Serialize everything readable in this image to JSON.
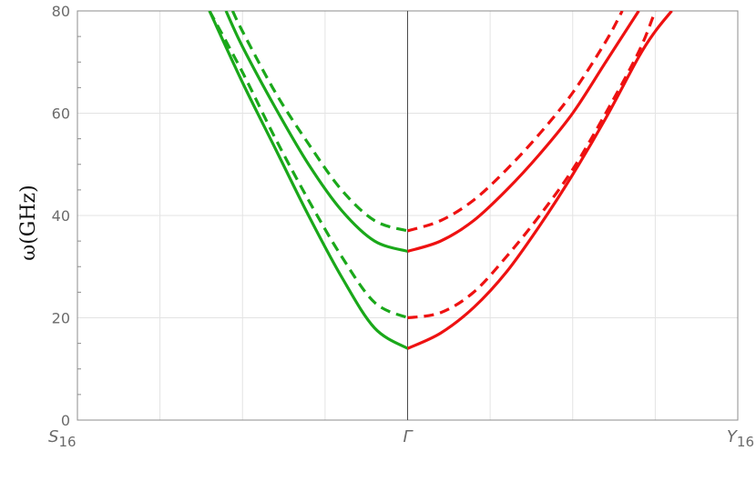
{
  "chart_data": {
    "type": "line",
    "title": "",
    "xlabel": "",
    "ylabel": "ω(GHz)",
    "ylim": [
      0,
      80
    ],
    "xlim": [
      -1,
      1
    ],
    "grid": true,
    "x_ticks": [
      {
        "value": -1,
        "main": "S",
        "sub": "16"
      },
      {
        "value": 0,
        "main": "Γ",
        "sub": ""
      },
      {
        "value": 1,
        "main": "Y",
        "sub": "16"
      }
    ],
    "y_ticks": [
      0,
      20,
      40,
      60,
      80
    ],
    "colors": {
      "left_branch": "#1aa81a",
      "right_branch": "#ee1111"
    },
    "series": [
      {
        "style": "solid",
        "color": "#1aa81a",
        "x": [
          -0.6,
          -0.5,
          -0.4,
          -0.3,
          -0.2,
          -0.1,
          0
        ],
        "y": [
          80,
          66,
          53,
          40,
          28,
          18,
          14
        ]
      },
      {
        "style": "dashed",
        "color": "#1aa81a",
        "x": [
          -0.6,
          -0.5,
          -0.4,
          -0.3,
          -0.2,
          -0.1,
          0
        ],
        "y": [
          80,
          68,
          55,
          43,
          32,
          23,
          20
        ]
      },
      {
        "style": "solid",
        "color": "#1aa81a",
        "x": [
          -0.55,
          -0.5,
          -0.4,
          -0.3,
          -0.2,
          -0.1,
          0
        ],
        "y": [
          80,
          73,
          61,
          50,
          41,
          35,
          33
        ]
      },
      {
        "style": "dashed",
        "color": "#1aa81a",
        "x": [
          -0.53,
          -0.5,
          -0.4,
          -0.3,
          -0.2,
          -0.1,
          0
        ],
        "y": [
          80,
          76,
          64,
          54,
          45,
          39,
          37
        ]
      },
      {
        "style": "solid",
        "color": "#ee1111",
        "x": [
          0,
          0.1,
          0.2,
          0.3,
          0.4,
          0.5,
          0.6,
          0.7,
          0.75,
          0.8
        ],
        "y": [
          14,
          17,
          22,
          29,
          38,
          48,
          59,
          71,
          76,
          80
        ]
      },
      {
        "style": "dashed",
        "color": "#ee1111",
        "x": [
          0,
          0.1,
          0.2,
          0.3,
          0.4,
          0.5,
          0.6,
          0.7,
          0.75
        ],
        "y": [
          20,
          21,
          25,
          32,
          40,
          49,
          60,
          72,
          80
        ]
      },
      {
        "style": "solid",
        "color": "#ee1111",
        "x": [
          0,
          0.1,
          0.2,
          0.3,
          0.4,
          0.5,
          0.6,
          0.7
        ],
        "y": [
          33,
          35,
          39,
          45,
          52,
          60,
          70,
          80
        ]
      },
      {
        "style": "dashed",
        "color": "#ee1111",
        "x": [
          0,
          0.1,
          0.2,
          0.3,
          0.4,
          0.5,
          0.6,
          0.65
        ],
        "y": [
          37,
          39,
          43,
          49,
          56,
          64,
          74,
          80
        ]
      }
    ]
  }
}
